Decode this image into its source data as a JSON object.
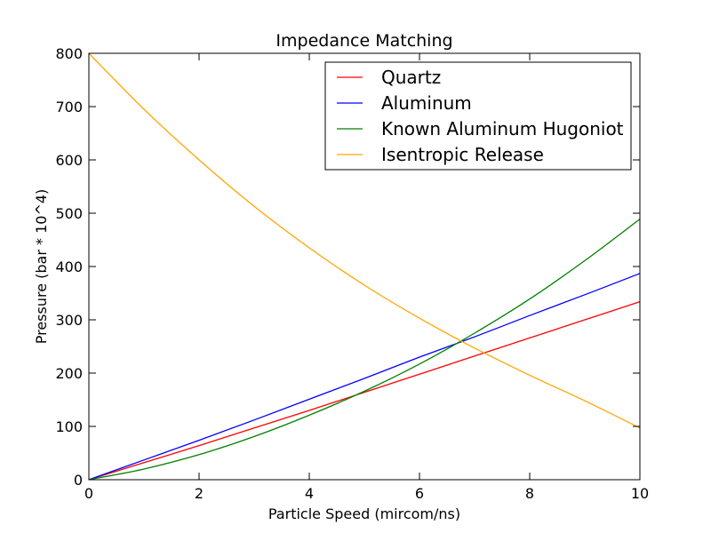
{
  "chart_data": {
    "type": "line",
    "title": "Impedance Matching",
    "xlabel": "Particle Speed (mircom/ns)",
    "ylabel": "Pressure (bar * 10^4)",
    "xlim": [
      0,
      10
    ],
    "ylim": [
      0,
      800
    ],
    "xticks": [
      0,
      2,
      4,
      6,
      8,
      10
    ],
    "yticks": [
      0,
      100,
      200,
      300,
      400,
      500,
      600,
      700,
      800
    ],
    "grid": false,
    "legend_position": "top-right",
    "x": [
      0,
      1,
      2,
      3,
      4,
      5,
      6,
      7,
      8,
      9,
      10
    ],
    "series": [
      {
        "name": "Quartz",
        "color": "#ff0000",
        "values": [
          0,
          32,
          64,
          97,
          130,
          164,
          198,
          232,
          266,
          300,
          334
        ]
      },
      {
        "name": "Aluminum",
        "color": "#0000ff",
        "values": [
          0,
          37,
          74,
          112,
          151,
          190,
          230,
          268,
          308,
          347,
          387
        ]
      },
      {
        "name": "Known Aluminum Hugoniot",
        "color": "#008000",
        "values": [
          0,
          20,
          47,
          81,
          121,
          166,
          217,
          275,
          339,
          411,
          489
        ]
      },
      {
        "name": "Isentropic Release",
        "color": "#ffa500",
        "values": [
          800,
          695,
          600,
          513,
          435,
          365,
          303,
          247,
          196,
          148,
          97
        ]
      }
    ]
  }
}
